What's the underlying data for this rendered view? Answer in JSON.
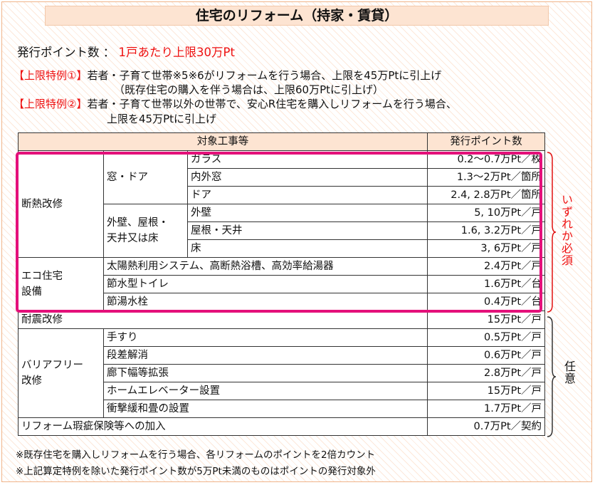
{
  "title": "住宅のリフォーム（持家・賃貸）",
  "points_label": "発行ポイント数 ：",
  "points_value": "1戸あたり上限30万Pt",
  "special1_tag": "【上限特例①】",
  "special1_line1": "若者・子育て世帯※5※6がリフォームを行う場合、上限を45万Ptに引上げ",
  "special1_line2": "（既存住宅の購入を伴う場合は、上限60万Ptに引上げ）",
  "special2_tag": "【上限特例②】",
  "special2_line1": "若者・子育て世帯以外の世帯で、安心R住宅を購入しリフォームを行う場合、",
  "special2_line2": "上限を45万Ptに引上げ",
  "table": {
    "header_work": "対象工事等",
    "header_points": "発行ポイント数",
    "insulation": "断熱改修",
    "window_door": "窓・ドア",
    "glass": "ガラス",
    "glass_pt": "0.2～0.7万Pt／枚",
    "inner_window": "内外窓",
    "inner_window_pt": "1.3～2万Pt／箇所",
    "door": "ドア",
    "door_pt": "2.4, 2.8万Pt／箇所",
    "wall_roof_line1": "外壁、屋根・",
    "wall_roof_line2": "天井又は床",
    "wall": "外壁",
    "wall_pt": "5, 10万Pt／戸",
    "roof": "屋根・天井",
    "roof_pt": "1.6, 3.2万Pt／戸",
    "floor": "床",
    "floor_pt": "3, 6万Pt／戸",
    "eco_line1": "エコ住宅",
    "eco_line2": "設備",
    "solar": "太陽熱利用システム、高断熱浴槽、高効率給湯器",
    "solar_pt": "2.4万Pt／戸",
    "toilet": "節水型トイレ",
    "toilet_pt": "1.6万Pt／台",
    "faucet": "節湯水栓",
    "faucet_pt": "0.4万Pt／台",
    "seismic": "耐震改修",
    "seismic_pt": "15万Pt／戸",
    "barrier_line1": "バリアフリー",
    "barrier_line2": "改修",
    "handrail": "手すり",
    "handrail_pt": "0.5万Pt／戸",
    "step": "段差解消",
    "step_pt": "0.6万Pt／戸",
    "corridor": "廊下幅等拡張",
    "corridor_pt": "2.8万Pt／戸",
    "elevator": "ホームエレベーター設置",
    "elevator_pt": "15万Pt／戸",
    "tatami": "衝撃緩和畳の設置",
    "tatami_pt": "1.7万Pt／戸",
    "warranty": "リフォーム瑕疵保険等への加入",
    "warranty_pt": "0.7万Pt／契約"
  },
  "side_required": "いずれか必須",
  "side_optional": "任意",
  "note1": "※既存住宅を購入しリフォームを行う場合、各リフォームのポイントを2倍カウント",
  "note2": "※上記算定特例を除いた発行ポイント数が5万Pt未満のものはポイントの発行対象外",
  "colors": {
    "accent_red": "#e11111",
    "magenta": "#e4107a",
    "header_bg": "#fde4d2"
  }
}
